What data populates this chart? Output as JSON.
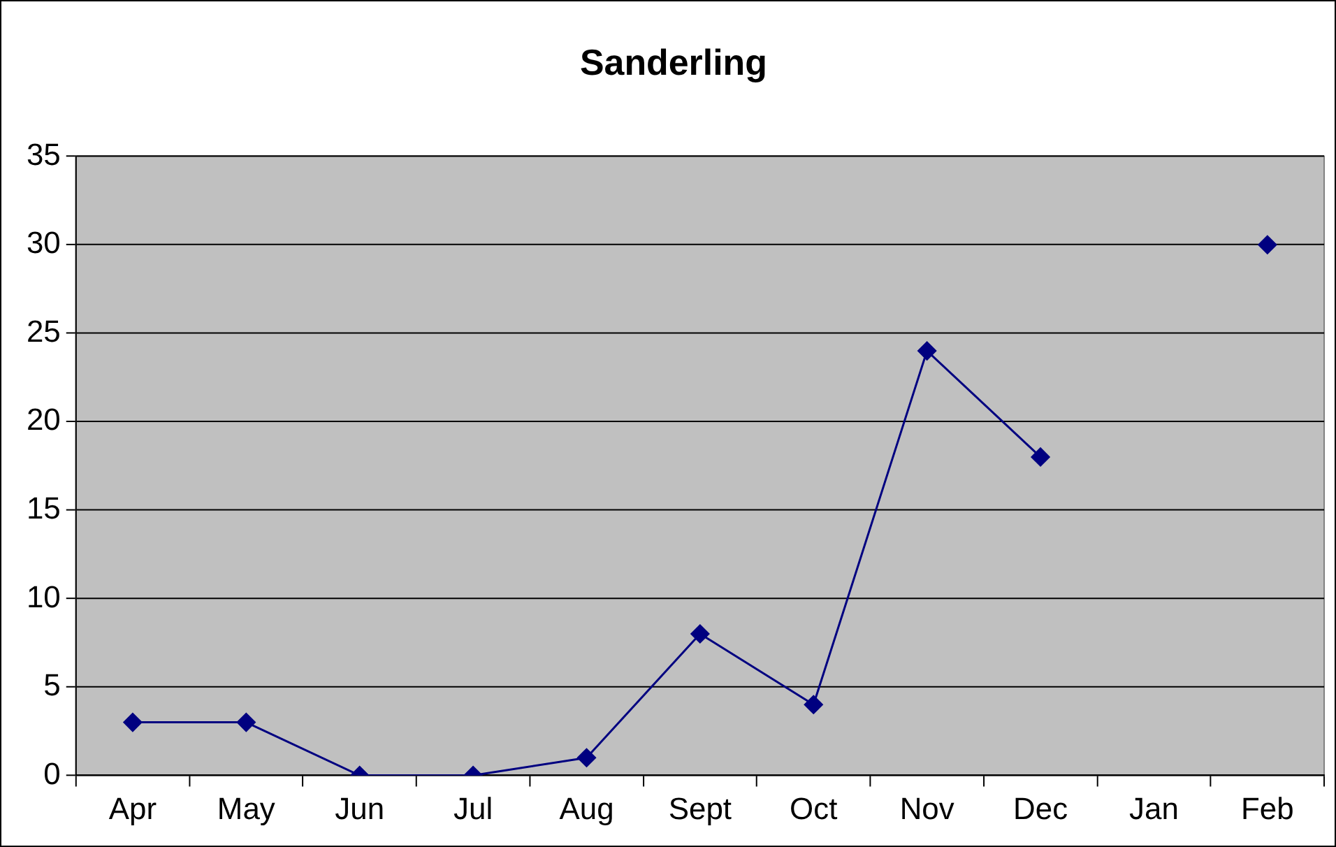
{
  "chart_data": {
    "type": "line",
    "title": "Sanderling",
    "categories": [
      "Apr",
      "May",
      "Jun",
      "Jul",
      "Aug",
      "Sept",
      "Oct",
      "Nov",
      "Dec",
      "Jan",
      "Feb"
    ],
    "series": [
      {
        "color": "#000080",
        "values": [
          3,
          3,
          0,
          0,
          1,
          8,
          4,
          24,
          18,
          null,
          30
        ]
      }
    ],
    "ylim": [
      0,
      35
    ],
    "yticks": [
      0,
      5,
      10,
      15,
      20,
      25,
      30,
      35
    ],
    "grid": "y",
    "marker": "diamond",
    "line_style": "solid"
  }
}
